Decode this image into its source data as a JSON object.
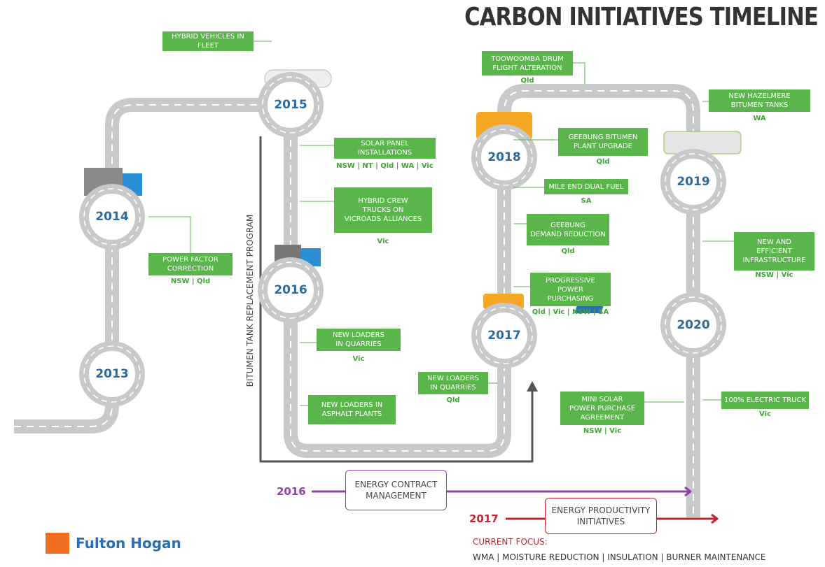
{
  "title": "CARBON INITIATIVES TIMELINE",
  "milestones": [
    "2013",
    "2014",
    "2015",
    "2016",
    "2017",
    "2018",
    "2019",
    "2020"
  ],
  "initiatives": [
    {
      "label": [
        "HYBRID VEHICLES IN",
        "FLEET"
      ]
    },
    {
      "label": [
        "SOLAR PANEL",
        "INSTALLATIONS"
      ],
      "regions": "NSW | NT | Qld | WA | Vic"
    },
    {
      "label": [
        "HYBRID CREW",
        "TRUCKS ON",
        "VICROADS ALLIANCES"
      ],
      "regions": "Vic"
    },
    {
      "label": [
        "POWER FACTOR",
        "CORRECTION"
      ],
      "regions": "NSW | Qld"
    },
    {
      "label": [
        "NEW LOADERS",
        "IN QUARRIES"
      ],
      "regions": "Vic"
    },
    {
      "label": [
        "NEW LOADERS IN",
        "ASPHALT PLANTS"
      ]
    },
    {
      "label": [
        "NEW LOADERS",
        "IN QUARRIES"
      ],
      "regions": "Qld"
    },
    {
      "label": [
        "TOOWOOMBA DRUM",
        "FLIGHT ALTERATION"
      ],
      "regions": "Qld"
    },
    {
      "label": [
        "GEEBUNG BITUMEN",
        "PLANT UPGRADE"
      ],
      "regions": "Qld"
    },
    {
      "label": [
        "MILE END DUAL FUEL"
      ],
      "regions": "SA"
    },
    {
      "label": [
        "GEEBUNG",
        "DEMAND REDUCTION"
      ],
      "regions": "Qld"
    },
    {
      "label": [
        "PROGRESSIVE",
        "POWER",
        "PURCHASING"
      ],
      "regions": "Qld | Vic | NSW | SA"
    },
    {
      "label": [
        "NEW HAZELMERE",
        "BITUMEN TANKS"
      ],
      "regions": "WA"
    },
    {
      "label": [
        "NEW AND",
        "EFFICIENT",
        "INFRASTRUCTURE"
      ],
      "regions": "NSW | Vic"
    },
    {
      "label": [
        "MINI SOLAR",
        "POWER PURCHASE",
        "AGREEMENT"
      ],
      "regions": "NSW | Vic"
    },
    {
      "label": [
        "100% ELECTRIC TRUCK"
      ],
      "regions": "Vic"
    }
  ],
  "side_label": "BITUMEN TANK REPLACEMENT PROGRAM",
  "programs": [
    {
      "year": "2016",
      "label": [
        "ENERGY CONTRACT",
        "MANAGEMENT"
      ]
    },
    {
      "year": "2017",
      "label": [
        "ENERGY PRODUCTIVITY",
        "INITIATIVES"
      ]
    }
  ],
  "current_focus": {
    "heading": "CURRENT FOCUS:",
    "items": "WMA | MOISTURE REDUCTION | INSULATION | BURNER MAINTENANCE"
  },
  "logo": "Fulton Hogan"
}
